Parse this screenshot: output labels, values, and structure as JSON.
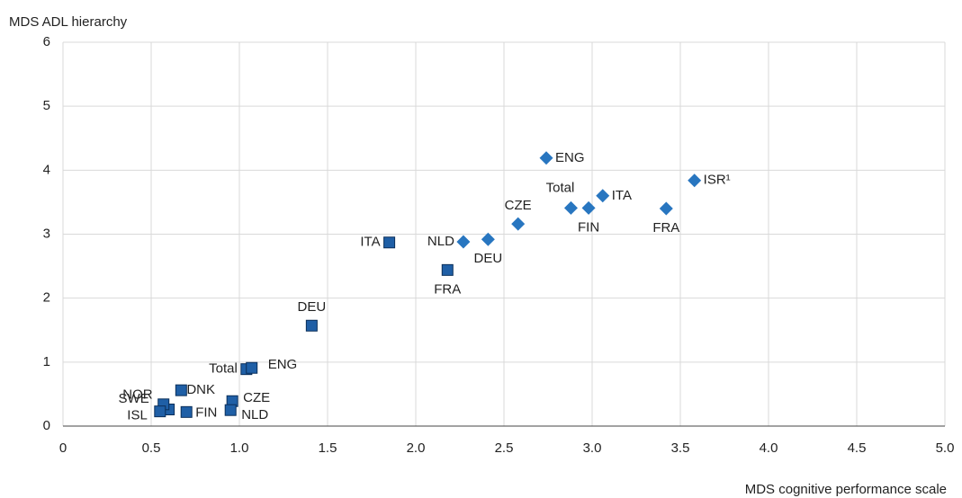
{
  "chart_data": {
    "type": "scatter",
    "y_label": "MDS ADL hierarchy",
    "x_label": "MDS cognitive performance scale",
    "xlim": [
      0,
      5
    ],
    "ylim": [
      0,
      6
    ],
    "xticks": [
      0,
      0.5,
      {
        "value": 1,
        "label": "1.0"
      },
      1.5,
      {
        "value": 2,
        "label": "2.0"
      },
      2.5,
      {
        "value": 3,
        "label": "3.0"
      },
      3.5,
      {
        "value": 4,
        "label": "4.0"
      },
      4.5,
      {
        "value": 5,
        "label": "5.0"
      }
    ],
    "yticks": [
      0,
      1,
      2,
      3,
      4,
      5,
      6
    ],
    "grid": true,
    "series": [
      {
        "marker": "square",
        "color": "#1f5fa6",
        "labels": [
          "ITA",
          "FRA",
          "DEU",
          "Total",
          "ENG",
          "NOR",
          "DNK",
          "SWE",
          "ISL",
          "FIN",
          "CZE",
          "NLD"
        ],
        "x": [
          1.85,
          2.18,
          1.41,
          1.04,
          1.07,
          0.6,
          0.67,
          0.57,
          0.55,
          0.7,
          0.96,
          0.95
        ],
        "values": [
          2.87,
          2.44,
          1.57,
          0.89,
          0.91,
          0.26,
          0.56,
          0.34,
          0.23,
          0.22,
          0.39,
          0.25
        ]
      },
      {
        "marker": "diamond",
        "color": "#2876c0",
        "labels": [
          "ENG",
          "Total",
          "FIN",
          "ITA",
          "ISR¹",
          "FRA",
          "CZE",
          "DEU",
          "NLD"
        ],
        "x": [
          2.74,
          2.88,
          2.98,
          3.06,
          3.58,
          3.42,
          2.58,
          2.41,
          2.27
        ],
        "values": [
          4.19,
          3.41,
          3.41,
          3.6,
          3.84,
          3.4,
          3.16,
          2.92,
          2.88
        ]
      }
    ]
  }
}
